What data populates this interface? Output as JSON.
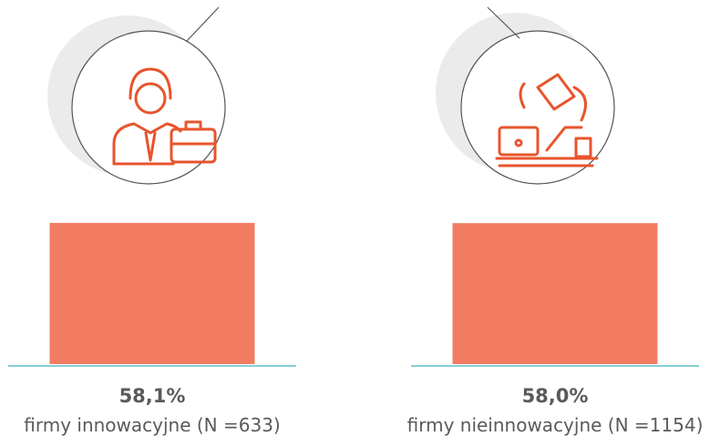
{
  "chart_data": {
    "type": "bar",
    "categories": [
      "firmy innowacyjne (N =633)",
      "firmy nieinnowacyjne (N =1154)"
    ],
    "values": [
      58.1,
      58.0
    ],
    "value_labels": [
      "58,1%",
      "58,0%"
    ],
    "color": "#f17c62"
  }
}
